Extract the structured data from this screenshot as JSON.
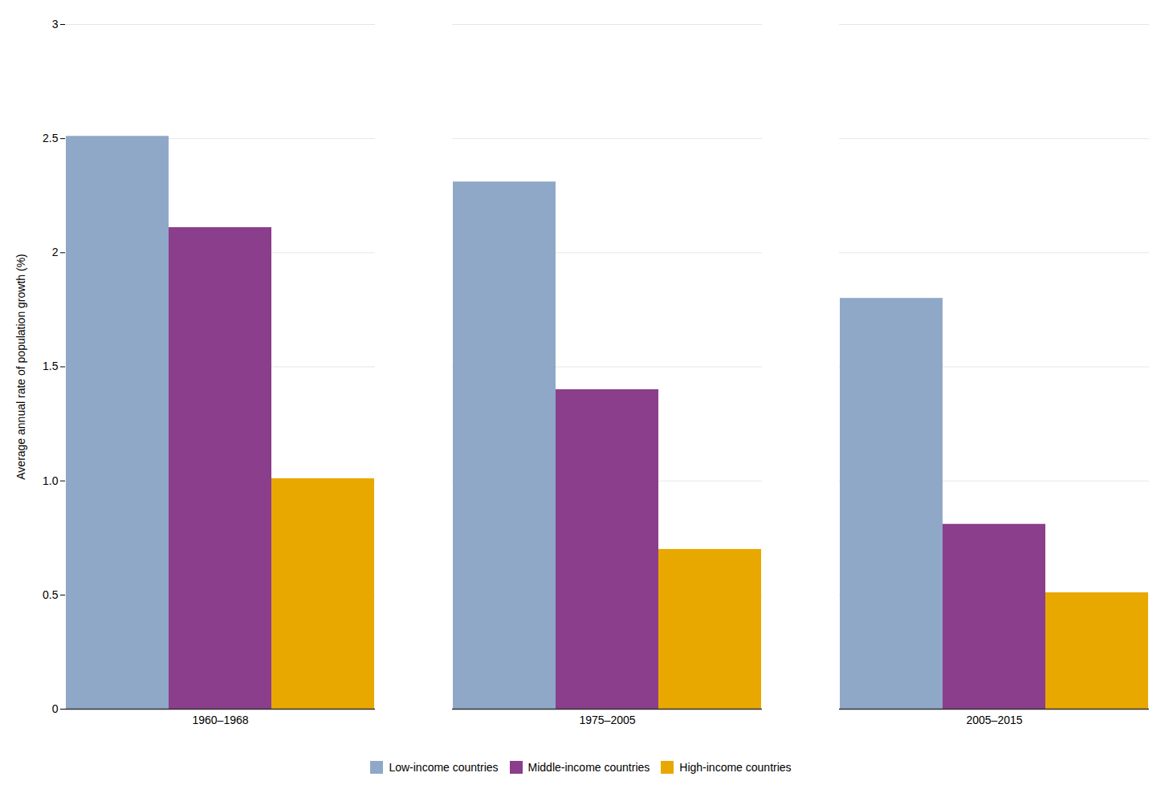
{
  "chart_data": {
    "type": "bar",
    "ylabel": "Average annual rate of population growth (%)",
    "categories": [
      "1960–1968",
      "1975–2005",
      "2005–2015"
    ],
    "series": [
      {
        "name": "Low-income countries",
        "color": "#8fa8c8",
        "values": [
          2.51,
          2.31,
          1.8
        ]
      },
      {
        "name": "Middle-income countries",
        "color": "#8b3e8b",
        "values": [
          2.11,
          1.4,
          0.81
        ]
      },
      {
        "name": "High-income countries",
        "color": "#e8a800",
        "values": [
          1.01,
          0.7,
          0.51
        ]
      }
    ],
    "ylim": [
      0,
      3.0
    ],
    "yticks": [
      0,
      0.5,
      {
        "value": 1.0,
        "label": "1.0"
      },
      1.5,
      2,
      2.5,
      3
    ],
    "grid": true,
    "legend": "bottom"
  }
}
